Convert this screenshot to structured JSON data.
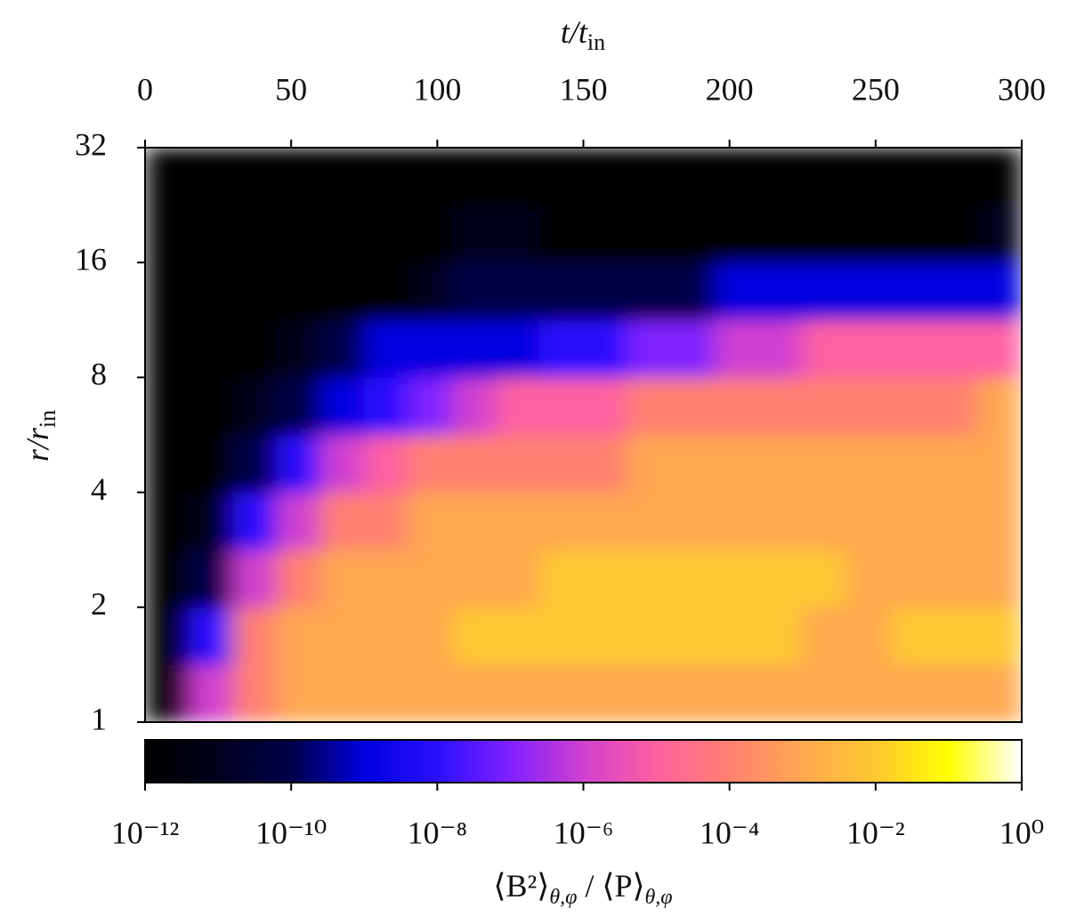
{
  "chart_data": {
    "type": "heatmap",
    "x_label": [
      "t/t",
      "in"
    ],
    "y_label": [
      "r/r",
      "in"
    ],
    "colorbar_label": [
      "⟨B²⟩",
      "θ,φ",
      " / ⟨P⟩",
      "θ,φ"
    ],
    "xlim": [
      0,
      300
    ],
    "xticks": [
      0,
      50,
      100,
      150,
      200,
      250,
      300
    ],
    "ylim": [
      1,
      32
    ],
    "yticks": [
      1,
      2,
      4,
      8,
      16,
      32
    ],
    "y_log_base": 2,
    "clim": [
      1e-12,
      1
    ],
    "cticks": [
      {
        "value": 1e-12,
        "label": "10⁻¹²"
      },
      {
        "value": 1e-10,
        "label": "10⁻¹⁰"
      },
      {
        "value": 1e-08,
        "label": "10⁻⁸"
      },
      {
        "value": 1e-06,
        "label": "10⁻⁶"
      },
      {
        "value": 0.0001,
        "label": "10⁻⁴"
      },
      {
        "value": 0.01,
        "label": "10⁻²"
      },
      {
        "value": 1,
        "label": "10⁰"
      }
    ],
    "colormap": [
      "#000000",
      "#00001e",
      "#00004a",
      "#0000e0",
      "#2a10ff",
      "#8020ff",
      "#d040d0",
      "#ff60a0",
      "#ff8070",
      "#ffa850",
      "#ffc830",
      "#ffff00",
      "#ffffff"
    ],
    "x_bins": [
      0,
      15,
      30,
      45,
      60,
      75,
      90,
      105,
      120,
      135,
      150,
      165,
      180,
      195,
      210,
      225,
      240,
      255,
      270,
      285,
      300
    ],
    "y_bins": [
      1,
      1.414,
      2,
      2.828,
      4,
      5.657,
      8,
      11.31,
      16,
      22.63,
      32
    ],
    "z": [
      [
        1e-12,
        1e-06,
        0.0001,
        0.001,
        0.001,
        0.001,
        0.001,
        0.001,
        0.001,
        0.001,
        0.001,
        0.001,
        0.001,
        0.001,
        0.001,
        0.001,
        0.001,
        0.001,
        0.001,
        0.001
      ],
      [
        1e-12,
        1e-08,
        0.0001,
        0.001,
        0.001,
        0.001,
        0.001,
        0.01,
        0.01,
        0.01,
        0.01,
        0.01,
        0.01,
        0.01,
        0.01,
        0.001,
        0.001,
        0.01,
        0.01,
        0.01
      ],
      [
        1e-12,
        1e-10,
        1e-06,
        0.0001,
        0.001,
        0.001,
        0.001,
        0.001,
        0.001,
        0.01,
        0.01,
        0.01,
        0.01,
        0.01,
        0.01,
        0.01,
        0.001,
        0.001,
        0.001,
        0.001
      ],
      [
        1e-12,
        1e-11,
        1e-08,
        1e-06,
        0.0001,
        0.0001,
        0.001,
        0.001,
        0.001,
        0.001,
        0.001,
        0.001,
        0.001,
        0.001,
        0.001,
        0.001,
        0.001,
        0.001,
        0.001,
        0.001
      ],
      [
        1e-12,
        1e-12,
        1e-10,
        1e-08,
        1e-06,
        1e-05,
        0.0001,
        0.0001,
        0.0001,
        0.0001,
        0.0001,
        0.001,
        0.001,
        0.001,
        0.001,
        0.001,
        0.001,
        0.001,
        0.001,
        0.001
      ],
      [
        1e-12,
        1e-12,
        1e-11,
        1e-10,
        1e-09,
        1e-08,
        1e-07,
        1e-06,
        1e-05,
        1e-05,
        1e-05,
        0.0001,
        0.0001,
        0.0001,
        0.0001,
        0.0001,
        0.0001,
        0.0001,
        0.0001,
        0.001
      ],
      [
        1e-12,
        1e-12,
        1e-12,
        1e-11,
        1e-10,
        1e-09,
        1e-09,
        1e-09,
        1e-09,
        1e-08,
        1e-08,
        1e-07,
        1e-07,
        1e-06,
        1e-06,
        1e-05,
        1e-05,
        1e-05,
        1e-05,
        1e-05
      ],
      [
        1e-12,
        1e-12,
        1e-12,
        1e-12,
        1e-12,
        1e-12,
        1e-11,
        1e-10,
        1e-10,
        1e-10,
        1e-10,
        1e-10,
        1e-10,
        1e-09,
        1e-09,
        1e-09,
        1e-09,
        1e-09,
        1e-09,
        1e-09
      ],
      [
        1e-12,
        1e-12,
        1e-12,
        1e-12,
        1e-12,
        1e-12,
        1e-12,
        1e-11,
        1e-11,
        1e-12,
        1e-12,
        1e-12,
        1e-12,
        1e-12,
        1e-12,
        1e-12,
        1e-12,
        1e-12,
        1e-12,
        1e-11
      ],
      [
        1e-12,
        1e-12,
        1e-12,
        1e-12,
        1e-12,
        1e-12,
        1e-12,
        1e-12,
        1e-12,
        1e-12,
        1e-12,
        1e-12,
        1e-12,
        1e-12,
        1e-12,
        1e-12,
        1e-12,
        1e-12,
        1e-12,
        1e-12
      ]
    ]
  }
}
